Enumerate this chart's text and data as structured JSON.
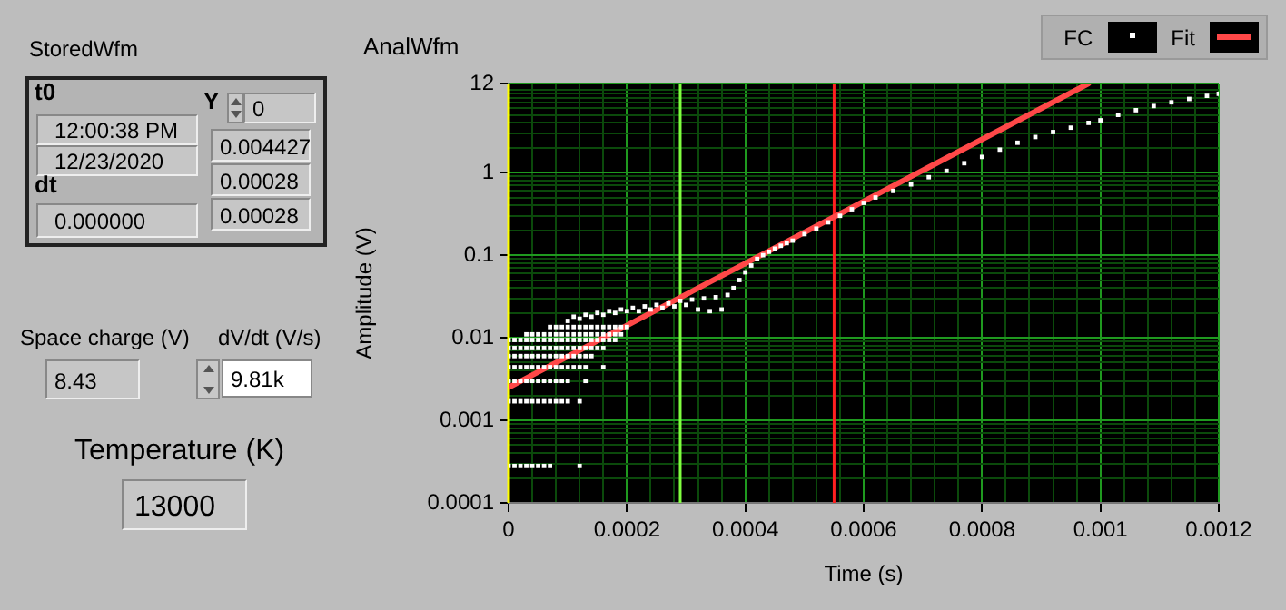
{
  "chart_data": [
    {
      "type": "other",
      "title": "StoredWfm",
      "annotations": [
        "t0",
        "12:00:38 PM",
        "12/23/2020",
        "dt",
        "0.000000",
        "Y",
        "0",
        "0.004427",
        "0.00028",
        "0.00028",
        "Space charge (V)",
        "8.43",
        "dV/dt (V/s)",
        "9.81k",
        "Temperature (K)",
        "13000"
      ]
    },
    {
      "type": "scatter",
      "title": "AnalWfm",
      "xlabel": "Time (s)",
      "ylabel": "Amplitude (V)",
      "log": "y",
      "grid": true,
      "legend": "top right",
      "xlim": [
        0,
        0.0012
      ],
      "xticks": [
        0,
        {
          "value": 4e-05,
          "label": null
        },
        {
          "value": 8e-05,
          "label": null
        },
        {
          "value": 0.00012,
          "label": null
        },
        {
          "value": 0.00016,
          "label": null
        },
        0.0002,
        {
          "value": 0.00024,
          "label": null
        },
        {
          "value": 0.00028,
          "label": null
        },
        {
          "value": 0.00032,
          "label": null
        },
        {
          "value": 0.00036,
          "label": null
        },
        0.0004,
        {
          "value": 0.00044,
          "label": null
        },
        {
          "value": 0.00048,
          "label": null
        },
        {
          "value": 0.00052,
          "label": null
        },
        {
          "value": 0.00056,
          "label": null
        },
        0.0006,
        {
          "value": 0.00064,
          "label": null
        },
        {
          "value": 0.00068,
          "label": null
        },
        {
          "value": 0.00072,
          "label": null
        },
        {
          "value": 0.00076,
          "label": null
        },
        0.0008,
        {
          "value": 0.00084,
          "label": null
        },
        {
          "value": 0.00088,
          "label": null
        },
        {
          "value": 0.00092,
          "label": null
        },
        {
          "value": 0.00096,
          "label": null
        },
        0.001,
        {
          "value": 0.00104,
          "label": null
        },
        {
          "value": 0.00108,
          "label": null
        },
        {
          "value": 0.00112,
          "label": null
        },
        {
          "value": 0.00116,
          "label": null
        },
        0.0012
      ],
      "ylim": [
        0.0001,
        12
      ],
      "yticks": [
        0.0001,
        {
          "value": 0.0002,
          "label": null
        },
        {
          "value": 0.0003,
          "label": null
        },
        {
          "value": 0.0004,
          "label": null
        },
        {
          "value": 0.0005,
          "label": null
        },
        {
          "value": 0.0006,
          "label": null
        },
        {
          "value": 0.0007,
          "label": null
        },
        {
          "value": 0.0008,
          "label": null
        },
        {
          "value": 0.0009,
          "label": null
        },
        0.001,
        {
          "value": 0.002,
          "label": null
        },
        {
          "value": 0.003,
          "label": null
        },
        {
          "value": 0.004,
          "label": null
        },
        {
          "value": 0.005,
          "label": null
        },
        {
          "value": 0.006,
          "label": null
        },
        {
          "value": 0.007,
          "label": null
        },
        {
          "value": 0.008,
          "label": null
        },
        {
          "value": 0.009,
          "label": null
        },
        0.01,
        {
          "value": 0.02,
          "label": null
        },
        {
          "value": 0.03,
          "label": null
        },
        {
          "value": 0.04,
          "label": null
        },
        {
          "value": 0.05,
          "label": null
        },
        {
          "value": 0.06,
          "label": null
        },
        {
          "value": 0.07,
          "label": null
        },
        {
          "value": 0.08,
          "label": null
        },
        {
          "value": 0.09,
          "label": null
        },
        0.1,
        {
          "value": 0.2,
          "label": null
        },
        {
          "value": 0.3,
          "label": null
        },
        {
          "value": 0.4,
          "label": null
        },
        {
          "value": 0.5,
          "label": null
        },
        {
          "value": 0.6,
          "label": null
        },
        {
          "value": 0.7,
          "label": null
        },
        {
          "value": 0.8,
          "label": null
        },
        {
          "value": 0.9,
          "label": null
        },
        1,
        {
          "value": 2,
          "label": null
        },
        {
          "value": 3,
          "label": null
        },
        {
          "value": 4,
          "label": null
        },
        {
          "value": 5,
          "label": null
        },
        {
          "value": 6,
          "label": null
        },
        {
          "value": 7,
          "label": null
        },
        {
          "value": 8,
          "label": null
        },
        {
          "value": 9,
          "label": null
        },
        {
          "value": 10,
          "label": null
        },
        12
      ],
      "ref_lines": [
        {
          "axis": "x",
          "value": 0,
          "color": "#ffff00"
        },
        {
          "axis": "x",
          "value": 0.00029,
          "color": "#80ff40"
        },
        {
          "axis": "x",
          "value": 0.00055,
          "color": "#ff2020"
        }
      ],
      "series": [
        {
          "name": "FC",
          "type": "scatter",
          "marker": "square",
          "color": "#ffffff",
          "x": [
            0,
            1e-05,
            2e-05,
            3e-05,
            4e-05,
            5e-05,
            6e-05,
            7e-05,
            0.00012,
            0,
            1e-05,
            2e-05,
            3e-05,
            4e-05,
            5e-05,
            6e-05,
            7e-05,
            8e-05,
            9e-05,
            0.0001,
            0.00012,
            0,
            1e-05,
            2e-05,
            3e-05,
            4e-05,
            5e-05,
            6e-05,
            7e-05,
            8e-05,
            9e-05,
            0.0001,
            0.00013,
            0,
            1e-05,
            2e-05,
            3e-05,
            4e-05,
            5e-05,
            6e-05,
            7e-05,
            8e-05,
            9e-05,
            0.0001,
            0.00011,
            0.00012,
            0.00013,
            0.00016,
            0,
            1e-05,
            2e-05,
            3e-05,
            4e-05,
            5e-05,
            6e-05,
            7e-05,
            8e-05,
            9e-05,
            0.0001,
            0.00011,
            0.00012,
            0.00013,
            0.00014,
            0,
            1e-05,
            2e-05,
            3e-05,
            4e-05,
            5e-05,
            6e-05,
            7e-05,
            8e-05,
            9e-05,
            0.0001,
            0.00011,
            0.00012,
            0.00013,
            0.00014,
            0.00015,
            0.00016,
            0,
            1e-05,
            2e-05,
            3e-05,
            4e-05,
            5e-05,
            6e-05,
            7e-05,
            8e-05,
            9e-05,
            0.0001,
            0.00011,
            0.00012,
            0.00013,
            0.00014,
            0.00015,
            0.00016,
            0.00017,
            0.00018,
            3e-05,
            4e-05,
            5e-05,
            6e-05,
            7e-05,
            8e-05,
            9e-05,
            0.0001,
            0.00011,
            0.00012,
            0.00013,
            0.00014,
            0.00015,
            0.00016,
            0.00017,
            0.00018,
            0.00019,
            7e-05,
            8e-05,
            9e-05,
            0.0001,
            0.00011,
            0.00012,
            0.00013,
            0.00014,
            0.00015,
            0.00016,
            0.00017,
            0.00018,
            0.00019,
            0.0002,
            0.0001,
            0.00011,
            0.00012,
            0.00013,
            0.00014,
            0.00015,
            0.00016,
            0.00017,
            0.00018,
            0.00019,
            0.0002,
            0.00021,
            0.00022,
            0.00023,
            0.00024,
            0.00025,
            0.00026,
            0.00027,
            0.00028,
            0.00029,
            0.0003,
            0.00031,
            0.00032,
            0.00033,
            0.00034,
            0.00035,
            0.00036,
            0.00037,
            0.00038,
            0.00039,
            0.0004,
            0.00041,
            0.00042,
            0.00043,
            0.00044,
            0.00045,
            0.00046,
            0.00047,
            0.00048,
            0.0005,
            0.00052,
            0.00054,
            0.00056,
            0.00058,
            0.0006,
            0.00062,
            0.00065,
            0.00068,
            0.00071,
            0.00074,
            0.00077,
            0.0008,
            0.00083,
            0.00086,
            0.00089,
            0.00092,
            0.00095,
            0.00098,
            0.001,
            0.00103,
            0.00106,
            0.00109,
            0.00112,
            0.00115,
            0.00118,
            0.0012
          ],
          "values": [
            0.00028,
            0.00028,
            0.00028,
            0.00028,
            0.00028,
            0.00028,
            0.00028,
            0.00028,
            0.00028,
            0.0017,
            0.0017,
            0.0017,
            0.0017,
            0.0017,
            0.0017,
            0.0017,
            0.0017,
            0.0017,
            0.0017,
            0.0017,
            0.0017,
            0.003,
            0.003,
            0.003,
            0.003,
            0.003,
            0.003,
            0.003,
            0.003,
            0.003,
            0.003,
            0.003,
            0.003,
            0.0044,
            0.0044,
            0.0044,
            0.0044,
            0.0044,
            0.0044,
            0.0044,
            0.0044,
            0.0044,
            0.0044,
            0.0044,
            0.0044,
            0.0044,
            0.0044,
            0.0044,
            0.006,
            0.006,
            0.006,
            0.006,
            0.006,
            0.006,
            0.006,
            0.006,
            0.006,
            0.006,
            0.006,
            0.006,
            0.006,
            0.006,
            0.006,
            0.0075,
            0.0075,
            0.0075,
            0.0075,
            0.0075,
            0.0075,
            0.0075,
            0.0075,
            0.0075,
            0.0075,
            0.0075,
            0.0075,
            0.0075,
            0.0075,
            0.0075,
            0.0075,
            0.0075,
            0.0094,
            0.0094,
            0.0094,
            0.0094,
            0.0094,
            0.0094,
            0.0094,
            0.0094,
            0.0094,
            0.0094,
            0.0094,
            0.0094,
            0.0094,
            0.0094,
            0.0094,
            0.0094,
            0.0094,
            0.0094,
            0.0094,
            0.011,
            0.011,
            0.011,
            0.011,
            0.011,
            0.011,
            0.011,
            0.011,
            0.011,
            0.011,
            0.011,
            0.011,
            0.011,
            0.011,
            0.011,
            0.011,
            0.011,
            0.0135,
            0.0135,
            0.0135,
            0.0135,
            0.0135,
            0.0135,
            0.0135,
            0.0135,
            0.0135,
            0.0135,
            0.0135,
            0.0135,
            0.0135,
            0.0135,
            0.016,
            0.018,
            0.017,
            0.019,
            0.018,
            0.02,
            0.019,
            0.021,
            0.02,
            0.022,
            0.021,
            0.023,
            0.021,
            0.024,
            0.022,
            0.025,
            0.023,
            0.026,
            0.024,
            0.028,
            0.025,
            0.029,
            0.022,
            0.03,
            0.021,
            0.031,
            0.022,
            0.033,
            0.04,
            0.05,
            0.062,
            0.075,
            0.09,
            0.1,
            0.11,
            0.12,
            0.13,
            0.14,
            0.15,
            0.18,
            0.21,
            0.25,
            0.3,
            0.36,
            0.43,
            0.5,
            0.6,
            0.72,
            0.88,
            1.05,
            1.3,
            1.55,
            1.9,
            2.3,
            2.7,
            3.1,
            3.5,
            4,
            4.3,
            5,
            5.7,
            6.4,
            7.1,
            7.8,
            8.5,
            9
          ]
        },
        {
          "name": "Fit",
          "type": "line",
          "marker": "none",
          "color": "#ff4848",
          "x": [
            0,
            0.00098
          ],
          "values": [
            0.0025,
            12
          ]
        }
      ]
    }
  ]
}
